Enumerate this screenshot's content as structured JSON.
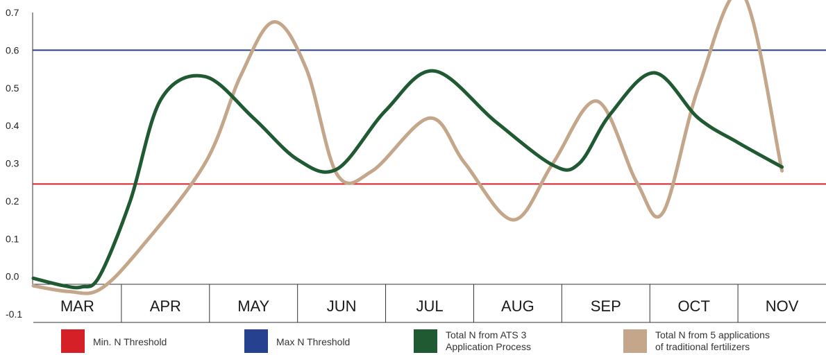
{
  "chart_data": {
    "type": "line",
    "title": "",
    "xlabel": "",
    "ylabel": "",
    "ylim": [
      -0.1,
      0.7
    ],
    "yticks": [
      "0.7",
      "0.6",
      "0.5",
      "0.4",
      "0.3",
      "0.2",
      "0.1",
      "0.0",
      "-0.1"
    ],
    "categories": [
      "MAR",
      "APR",
      "MAY",
      "JUN",
      "JUL",
      "AUG",
      "SEP",
      "OCT",
      "NOV"
    ],
    "grid": false,
    "legend_position": "bottom",
    "thresholds": [
      {
        "name": "Min. N Threshold",
        "value": 0.245,
        "color": "#d62027"
      },
      {
        "name": "Max N Threshold",
        "value": 0.6,
        "color": "#25418f"
      }
    ],
    "series": [
      {
        "name": "Total N from ATS 3 Application Process",
        "color": "#1f5a32",
        "points": [
          [
            0.0,
            -0.005
          ],
          [
            0.35,
            -0.025
          ],
          [
            0.55,
            -0.028
          ],
          [
            0.75,
            0.0
          ],
          [
            1.1,
            0.2
          ],
          [
            1.45,
            0.47
          ],
          [
            1.95,
            0.53
          ],
          [
            2.5,
            0.42
          ],
          [
            3.0,
            0.31
          ],
          [
            3.45,
            0.285
          ],
          [
            4.0,
            0.44
          ],
          [
            4.55,
            0.545
          ],
          [
            5.25,
            0.41
          ],
          [
            5.9,
            0.295
          ],
          [
            6.2,
            0.3
          ],
          [
            6.55,
            0.43
          ],
          [
            7.05,
            0.54
          ],
          [
            7.55,
            0.42
          ],
          [
            8.0,
            0.355
          ],
          [
            8.5,
            0.29
          ]
        ]
      },
      {
        "name": "Total N from 5 applications of traditional fertilizers",
        "color": "#c4a68a",
        "points": [
          [
            0.0,
            -0.025
          ],
          [
            0.4,
            -0.04
          ],
          [
            0.75,
            -0.035
          ],
          [
            1.2,
            0.07
          ],
          [
            1.95,
            0.3
          ],
          [
            2.35,
            0.53
          ],
          [
            2.73,
            0.675
          ],
          [
            3.1,
            0.55
          ],
          [
            3.45,
            0.27
          ],
          [
            3.85,
            0.28
          ],
          [
            4.5,
            0.42
          ],
          [
            4.9,
            0.3
          ],
          [
            5.45,
            0.15
          ],
          [
            5.9,
            0.3
          ],
          [
            6.4,
            0.465
          ],
          [
            6.85,
            0.25
          ],
          [
            7.15,
            0.17
          ],
          [
            7.55,
            0.5
          ],
          [
            8.05,
            0.75
          ],
          [
            8.5,
            0.28
          ]
        ]
      }
    ]
  }
}
